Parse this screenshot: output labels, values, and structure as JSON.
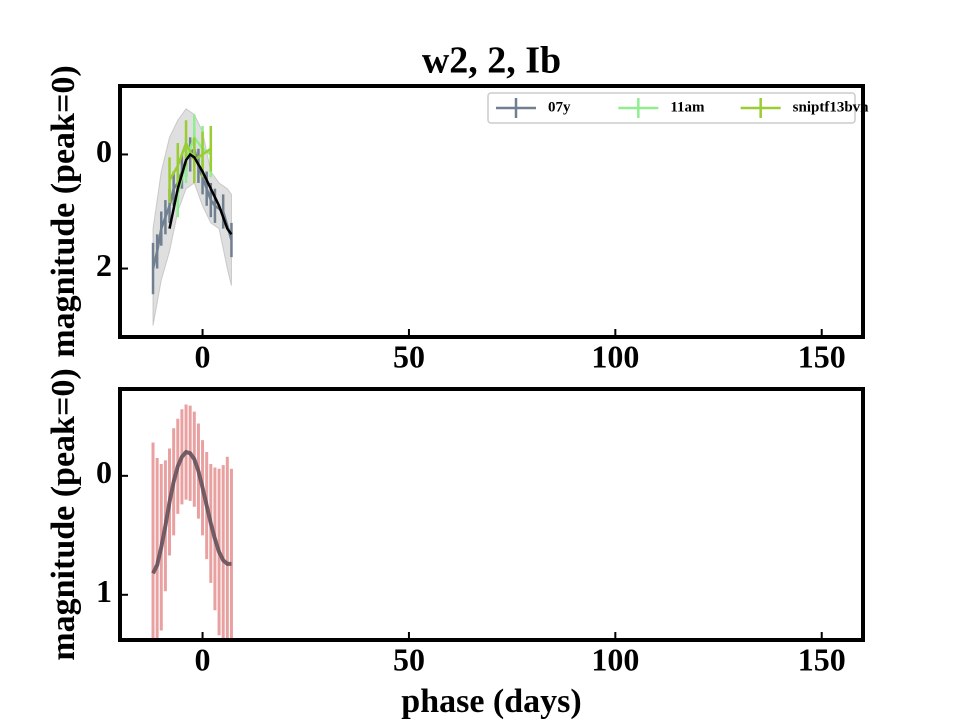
{
  "chart_data": [
    {
      "type": "errorbar",
      "title": "w2, 2, Ib",
      "ylabel": "magnitude (peak=0)",
      "xlim": [
        -20,
        160
      ],
      "xticks": [
        0,
        50,
        100,
        150
      ],
      "ylim": [
        3.2,
        -1.2
      ],
      "yticks": [
        0,
        2
      ],
      "legend": "upper right",
      "series": [
        {
          "name": "07y",
          "color": "#708090",
          "x": [
            -12,
            -11,
            -10,
            -9,
            -8,
            -7,
            -6,
            -5,
            -4,
            -3,
            -2,
            -1,
            0,
            1,
            2,
            3,
            5,
            7
          ],
          "values": [
            2.0,
            1.7,
            1.3,
            1.1,
            0.9,
            0.6,
            0.5,
            0.3,
            0.1,
            0.0,
            -0.1,
            0.2,
            0.4,
            0.6,
            0.8,
            0.9,
            1.0,
            1.5
          ],
          "errors": [
            0.45,
            0.3,
            0.3,
            0.3,
            0.3,
            0.3,
            0.3,
            0.3,
            0.3,
            0.3,
            0.3,
            0.3,
            0.3,
            0.3,
            0.3,
            0.3,
            0.3,
            0.3
          ]
        },
        {
          "name": "11am",
          "color": "#90ee90",
          "x": [
            -6,
            -4,
            -2,
            0,
            2
          ],
          "values": [
            0.7,
            0.1,
            -0.3,
            -0.1,
            0.0
          ],
          "errors": [
            0.4,
            0.4,
            0.4,
            0.4,
            0.4
          ]
        },
        {
          "name": "sniptf13bvn",
          "color": "#9acd32",
          "x": [
            -8,
            -6,
            -4,
            -2,
            0,
            2
          ],
          "values": [
            0.45,
            0.2,
            -0.2,
            0.1,
            0.0,
            -0.1
          ],
          "errors": [
            0.4,
            0.4,
            0.4,
            0.4,
            0.4,
            0.4
          ]
        }
      ],
      "mean_line": {
        "color": "#000000",
        "x": [
          -8,
          -6,
          -4,
          -3,
          -2,
          0,
          2,
          4,
          6,
          7
        ],
        "values": [
          1.3,
          0.6,
          0.1,
          0.0,
          0.05,
          0.3,
          0.6,
          0.9,
          1.3,
          1.4
        ]
      },
      "band": {
        "color": "#b0b0b0",
        "x": [
          -12,
          -10,
          -8,
          -6,
          -4,
          -2,
          0,
          2,
          4,
          6,
          7
        ],
        "low": [
          1.3,
          0.3,
          -0.3,
          -0.6,
          -0.8,
          -0.7,
          -0.4,
          0.3,
          0.5,
          0.6,
          0.7
        ],
        "high": [
          3.0,
          2.2,
          1.7,
          1.0,
          0.6,
          0.5,
          0.9,
          1.2,
          1.3,
          2.0,
          2.3
        ]
      }
    },
    {
      "type": "errorbar",
      "ylabel": "magnitude (peak=0)",
      "xlabel": "phase (days)",
      "xlim": [
        -20,
        160
      ],
      "xticks": [
        0,
        50,
        100,
        150
      ],
      "ylim": [
        1.38,
        -0.73
      ],
      "yticks": [
        0,
        1
      ],
      "series": [
        {
          "color": "#e07878",
          "x": [
            -12,
            -11,
            -10,
            -9,
            -8,
            -7,
            -6,
            -5,
            -4,
            -3,
            -2,
            -1,
            0,
            1,
            2,
            3,
            4,
            5,
            6,
            7
          ],
          "values": [
            0.82,
            0.75,
            0.6,
            0.42,
            0.22,
            0.05,
            -0.08,
            -0.16,
            -0.2,
            -0.19,
            -0.14,
            -0.04,
            0.1,
            0.25,
            0.4,
            0.53,
            0.64,
            0.71,
            0.74,
            0.74
          ],
          "errors": [
            1.1,
            0.9,
            0.7,
            0.55,
            0.45,
            0.45,
            0.4,
            0.4,
            0.4,
            0.4,
            0.4,
            0.4,
            0.4,
            0.45,
            0.5,
            0.6,
            0.7,
            0.8,
            0.9,
            0.8
          ]
        }
      ],
      "mean_line": {
        "color": "#5a4a55",
        "x": [
          -12,
          -11,
          -10,
          -9,
          -8,
          -7,
          -6,
          -5,
          -4,
          -3,
          -2,
          -1,
          0,
          1,
          2,
          3,
          4,
          5,
          6,
          7
        ],
        "values": [
          0.82,
          0.75,
          0.6,
          0.42,
          0.22,
          0.05,
          -0.08,
          -0.16,
          -0.2,
          -0.19,
          -0.14,
          -0.04,
          0.1,
          0.25,
          0.4,
          0.53,
          0.64,
          0.71,
          0.74,
          0.74
        ]
      }
    }
  ]
}
